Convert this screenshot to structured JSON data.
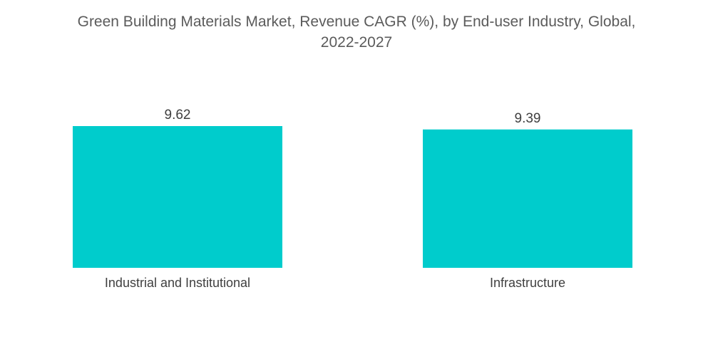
{
  "chart_data": {
    "type": "bar",
    "title": "Green Building Materials Market, Revenue CAGR (%), by End-user Industry, Global, 2022-2027",
    "title_lines": [
      "Green Building Materials Market, Revenue CAGR (%), by End-user Industry, Global,",
      "2022-2027"
    ],
    "categories": [
      "Industrial and Institutional",
      "Infrastructure"
    ],
    "values": [
      9.62,
      9.39
    ],
    "value_labels": [
      "9.62",
      "9.39"
    ],
    "xlabel": "",
    "ylabel": "",
    "ylim": [
      0,
      9.62
    ],
    "grid": false,
    "legend": "none",
    "bar_color": "#00cccc"
  }
}
